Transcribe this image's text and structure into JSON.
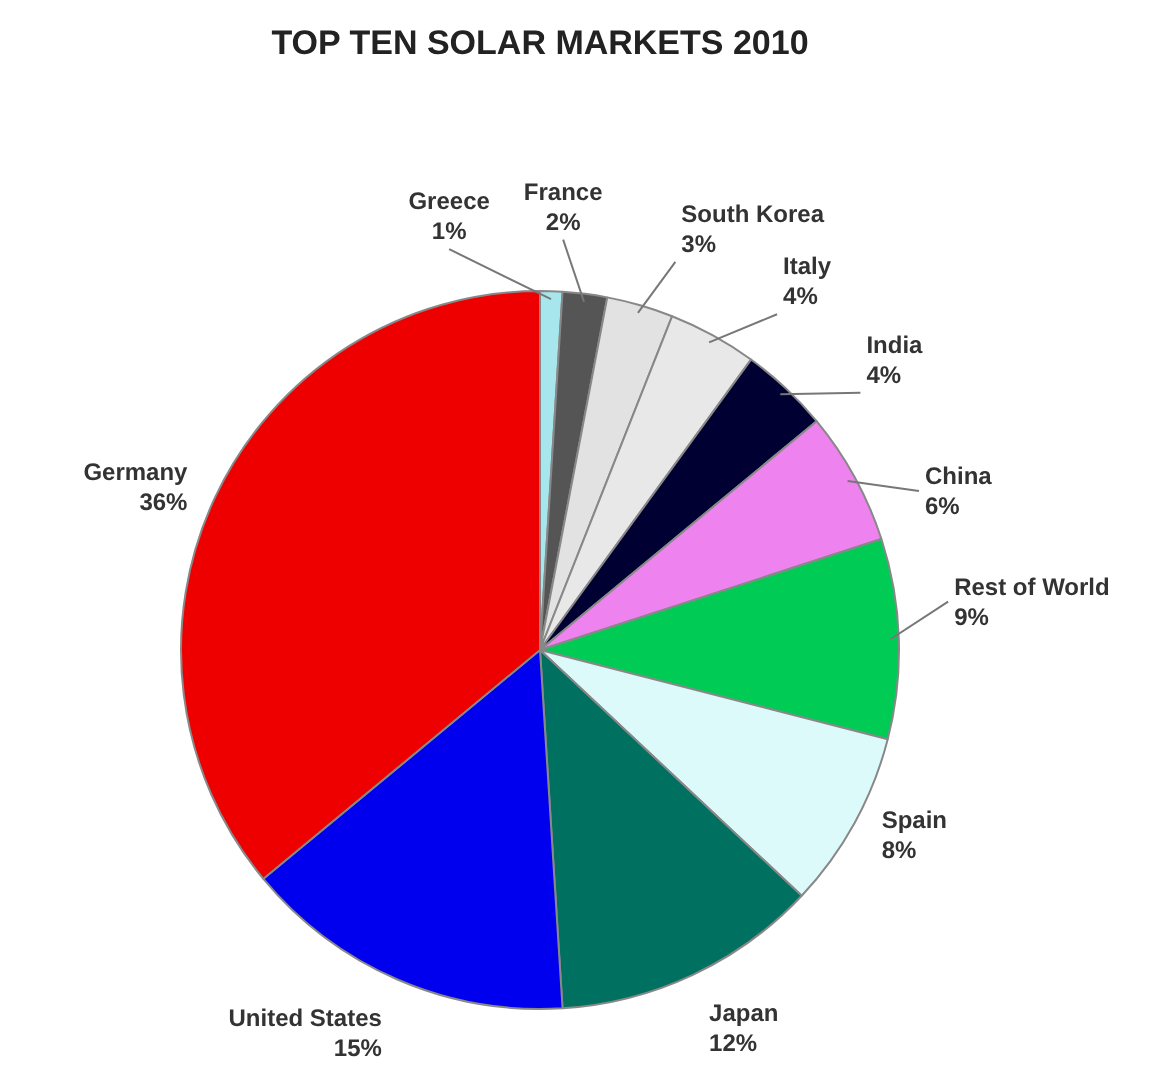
{
  "chart_data": {
    "type": "pie",
    "title": "TOP TEN SOLAR MARKETS 2010",
    "categories": [
      "Greece",
      "France",
      "South Korea",
      "Italy",
      "India",
      "China",
      "Rest of World",
      "Spain",
      "Japan",
      "United States",
      "Germany"
    ],
    "values": [
      1,
      2,
      3,
      4,
      4,
      6,
      9,
      8,
      12,
      15,
      36
    ],
    "value_labels": [
      "1%",
      "2%",
      "3%",
      "4%",
      "4%",
      "6%",
      "9%",
      "8%",
      "12%",
      "15%",
      "36%"
    ],
    "colors": [
      "#a8e6ee",
      "#555555",
      "#e2e2e2",
      "#e8e8e8",
      "#000033",
      "#ee82ee",
      "#00cc55",
      "#ddfafa",
      "#007060",
      "#0000ee",
      "#ee0000"
    ],
    "legend": false
  }
}
